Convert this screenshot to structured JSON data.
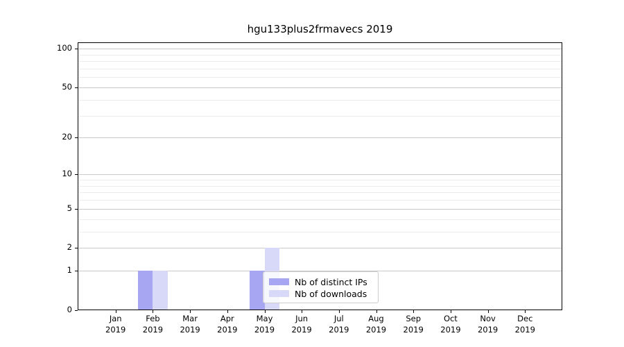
{
  "chart_data": {
    "type": "bar",
    "title": "hgu133plus2frmavecs 2019",
    "categories": [
      "Jan 2019",
      "Feb 2019",
      "Mar 2019",
      "Apr 2019",
      "May 2019",
      "Jun 2019",
      "Jul 2019",
      "Aug 2019",
      "Sep 2019",
      "Oct 2019",
      "Nov 2019",
      "Dec 2019"
    ],
    "series": [
      {
        "name": "Nb of distinct IPs",
        "color": "#a6a6f2",
        "values": [
          0,
          1,
          0,
          0,
          1,
          0,
          0,
          0,
          0,
          0,
          0,
          0
        ]
      },
      {
        "name": "Nb of downloads",
        "color": "#d8d8f8",
        "values": [
          0,
          1,
          0,
          0,
          2,
          0,
          0,
          0,
          0,
          0,
          0,
          0
        ]
      }
    ],
    "ylabel": "",
    "xlabel": "",
    "yticks": [
      0,
      1,
      2,
      5,
      10,
      20,
      50,
      100
    ],
    "minor_gridline_values": [
      3,
      4,
      6,
      7,
      8,
      9,
      30,
      40,
      60,
      70,
      80,
      90
    ],
    "scale": "log1p",
    "ylim": [
      0,
      112
    ],
    "grid": "horizontal",
    "legend_position": "inside-bottom-center"
  },
  "colors": {
    "major_grid": "#c9c9c9",
    "minor_grid": "#ececec",
    "spine": "#000000",
    "text": "#000000",
    "legend_border": "#cccccc"
  }
}
